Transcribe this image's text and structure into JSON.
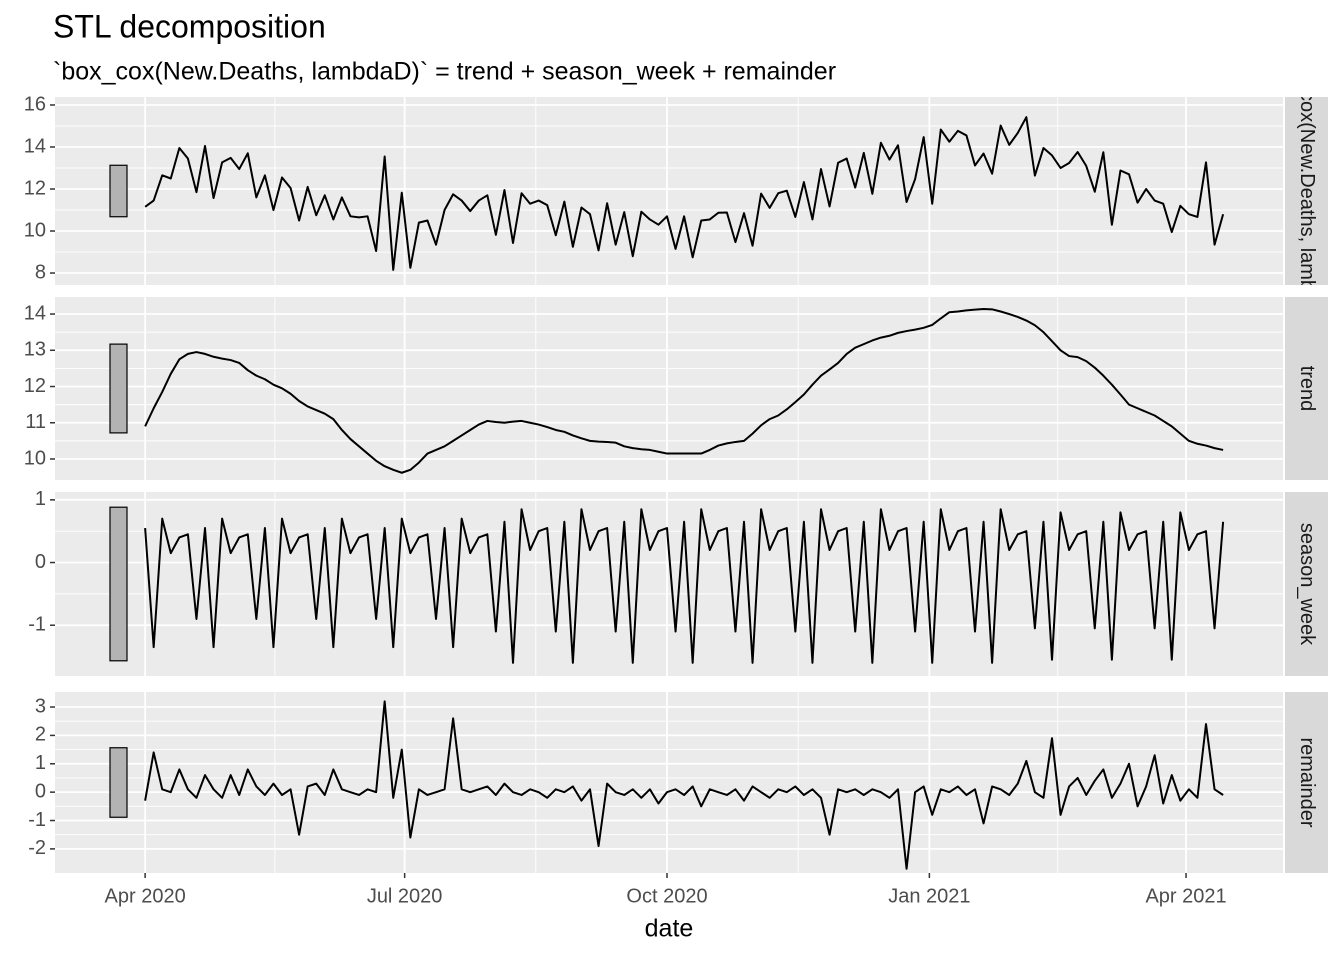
{
  "chart_data": {
    "type": "line",
    "title": "STL decomposition",
    "subtitle": "`box_cox(New.Deaths, lambdaD)` = trend + season_week + remainder",
    "x_label": "date",
    "color": "#000000",
    "grid": true,
    "x": [
      0,
      3,
      6,
      9,
      12,
      15,
      18,
      21,
      24,
      27,
      30,
      33,
      36,
      39,
      42,
      45,
      48,
      51,
      54,
      57,
      60,
      63,
      66,
      69,
      72,
      75,
      78,
      81,
      84,
      87,
      90,
      93,
      96,
      99,
      102,
      105,
      108,
      111,
      114,
      117,
      120,
      123,
      126,
      129,
      132,
      135,
      138,
      141,
      144,
      147,
      150,
      153,
      156,
      159,
      162,
      165,
      168,
      171,
      174,
      177,
      180,
      183,
      186,
      189,
      192,
      195,
      198,
      201,
      204,
      207,
      210,
      213,
      216,
      219,
      222,
      225,
      228,
      231,
      234,
      237,
      240,
      243,
      246,
      249,
      252,
      255,
      258,
      261,
      264,
      267,
      270,
      273,
      276,
      279,
      282,
      285,
      288,
      291,
      294,
      297,
      300,
      303,
      306,
      309,
      312,
      315,
      318,
      321,
      324,
      327,
      330,
      333,
      336,
      339,
      342,
      345,
      348,
      351,
      354,
      357,
      360,
      363,
      366,
      369,
      372,
      375,
      378
    ],
    "xlim": [
      -31.6,
      399
    ],
    "xticks": [
      {
        "value": 0,
        "label": "Apr 2020"
      },
      {
        "value": 91,
        "label": "Jul 2020"
      },
      {
        "value": 183,
        "label": "Oct 2020"
      },
      {
        "value": 275,
        "label": "Jan 2021"
      },
      {
        "value": 365,
        "label": "Apr 2021"
      }
    ],
    "panels": [
      {
        "label": "box_cox(New.Deaths, lambdaD)",
        "ylim": [
          7.43,
          16.38
        ],
        "yticks": [
          8,
          10,
          12,
          14,
          16
        ],
        "values": [
          11.15,
          11.45,
          12.65,
          12.5,
          13.95,
          13.45,
          11.85,
          14.05,
          11.57,
          13.27,
          13.48,
          12.95,
          13.7,
          11.6,
          12.65,
          11.0,
          12.55,
          12.05,
          10.5,
          12.1,
          10.75,
          11.7,
          10.55,
          11.6,
          10.7,
          10.65,
          10.7,
          9.05,
          13.55,
          8.15,
          11.82,
          8.25,
          10.4,
          10.5,
          9.35,
          11.0,
          11.75,
          11.45,
          10.95,
          11.45,
          11.7,
          9.82,
          11.95,
          9.43,
          11.8,
          11.3,
          11.45,
          11.23,
          9.8,
          11.4,
          9.25,
          11.12,
          10.8,
          9.08,
          11.32,
          9.35,
          10.9,
          8.8,
          10.92,
          10.55,
          10.3,
          10.7,
          9.15,
          10.7,
          8.75,
          10.5,
          10.55,
          10.87,
          10.88,
          9.47,
          10.85,
          9.3,
          11.78,
          11.1,
          11.8,
          11.92,
          10.67,
          12.33,
          10.55,
          12.95,
          11.17,
          13.25,
          13.45,
          12.07,
          13.72,
          11.77,
          14.2,
          13.4,
          14.08,
          11.38,
          12.47,
          14.47,
          11.3,
          14.83,
          14.25,
          14.77,
          14.55,
          13.12,
          13.69,
          12.73,
          15.02,
          14.1,
          14.67,
          15.42,
          12.64,
          13.95,
          13.6,
          13.0,
          13.24,
          13.76,
          13.1,
          11.87,
          13.75,
          10.3,
          12.88,
          12.7,
          11.35,
          12.0,
          11.45,
          11.3,
          9.95,
          11.2,
          10.8,
          10.67,
          13.27,
          9.35,
          10.8
        ]
      },
      {
        "label": "trend",
        "ylim": [
          9.42,
          14.47
        ],
        "yticks": [
          10,
          11,
          12,
          13,
          14
        ],
        "values": [
          10.9,
          11.4,
          11.85,
          12.35,
          12.75,
          12.9,
          12.95,
          12.9,
          12.82,
          12.77,
          12.73,
          12.65,
          12.45,
          12.3,
          12.2,
          12.05,
          11.95,
          11.8,
          11.6,
          11.45,
          11.35,
          11.25,
          11.1,
          10.8,
          10.55,
          10.35,
          10.15,
          9.95,
          9.8,
          9.7,
          9.62,
          9.7,
          9.9,
          10.15,
          10.25,
          10.35,
          10.5,
          10.65,
          10.8,
          10.95,
          11.05,
          11.02,
          11.0,
          11.03,
          11.05,
          11.0,
          10.95,
          10.88,
          10.8,
          10.75,
          10.65,
          10.57,
          10.5,
          10.48,
          10.47,
          10.45,
          10.35,
          10.3,
          10.27,
          10.25,
          10.2,
          10.15,
          10.15,
          10.15,
          10.15,
          10.15,
          10.25,
          10.37,
          10.43,
          10.47,
          10.5,
          10.7,
          10.93,
          11.1,
          11.2,
          11.37,
          11.57,
          11.78,
          12.05,
          12.3,
          12.47,
          12.65,
          12.9,
          13.07,
          13.17,
          13.27,
          13.35,
          13.4,
          13.48,
          13.53,
          13.57,
          13.62,
          13.7,
          13.88,
          14.05,
          14.07,
          14.1,
          14.12,
          14.14,
          14.13,
          14.07,
          14.0,
          13.92,
          13.82,
          13.69,
          13.5,
          13.25,
          13.0,
          12.84,
          12.81,
          12.7,
          12.52,
          12.3,
          12.05,
          11.78,
          11.5,
          11.4,
          11.3,
          11.2,
          11.05,
          10.9,
          10.7,
          10.5,
          10.42,
          10.37,
          10.3,
          10.25
        ]
      },
      {
        "label": "season_week",
        "ylim": [
          -1.81,
          1.125
        ],
        "yticks": [
          -1,
          0,
          1
        ],
        "values": [
          0.55,
          -1.35,
          0.7,
          0.15,
          0.4,
          0.45,
          -0.9,
          0.55,
          -1.35,
          0.7,
          0.15,
          0.4,
          0.45,
          -0.9,
          0.55,
          -1.35,
          0.7,
          0.15,
          0.4,
          0.45,
          -0.9,
          0.55,
          -1.35,
          0.7,
          0.15,
          0.4,
          0.45,
          -0.9,
          0.55,
          -1.35,
          0.7,
          0.15,
          0.4,
          0.45,
          -0.9,
          0.55,
          -1.35,
          0.7,
          0.15,
          0.4,
          0.45,
          -1.1,
          0.65,
          -1.6,
          0.85,
          0.2,
          0.5,
          0.55,
          -1.1,
          0.65,
          -1.6,
          0.85,
          0.2,
          0.5,
          0.55,
          -1.1,
          0.65,
          -1.6,
          0.85,
          0.2,
          0.5,
          0.55,
          -1.1,
          0.65,
          -1.6,
          0.85,
          0.2,
          0.5,
          0.55,
          -1.1,
          0.65,
          -1.6,
          0.85,
          0.2,
          0.5,
          0.55,
          -1.1,
          0.65,
          -1.6,
          0.85,
          0.2,
          0.5,
          0.55,
          -1.1,
          0.65,
          -1.6,
          0.85,
          0.2,
          0.5,
          0.55,
          -1.1,
          0.65,
          -1.6,
          0.85,
          0.2,
          0.5,
          0.55,
          -1.1,
          0.65,
          -1.6,
          0.85,
          0.2,
          0.45,
          0.5,
          -1.05,
          0.65,
          -1.55,
          0.8,
          0.2,
          0.45,
          0.5,
          -1.05,
          0.65,
          -1.55,
          0.8,
          0.2,
          0.45,
          0.5,
          -1.05,
          0.65,
          -1.55,
          0.8,
          0.2,
          0.45,
          0.5,
          -1.05,
          0.65
        ]
      },
      {
        "label": "remainder",
        "ylim": [
          -2.85,
          3.53
        ],
        "yticks": [
          -2,
          -1,
          0,
          1,
          2,
          3
        ],
        "values": [
          -0.3,
          1.4,
          0.1,
          0.0,
          0.8,
          0.1,
          -0.2,
          0.6,
          0.1,
          -0.2,
          0.6,
          -0.1,
          0.8,
          0.2,
          -0.1,
          0.3,
          -0.1,
          0.1,
          -1.5,
          0.2,
          0.3,
          -0.1,
          0.8,
          0.1,
          0.0,
          -0.1,
          0.1,
          0.0,
          3.2,
          -0.2,
          1.5,
          -1.6,
          0.1,
          -0.1,
          0.0,
          0.1,
          2.6,
          0.1,
          0.0,
          0.1,
          0.2,
          -0.1,
          0.3,
          0.0,
          -0.1,
          0.1,
          0.0,
          -0.2,
          0.1,
          0.0,
          0.2,
          -0.3,
          0.1,
          -1.9,
          0.3,
          0.0,
          -0.1,
          0.1,
          -0.2,
          0.1,
          -0.4,
          0.0,
          0.1,
          -0.1,
          0.2,
          -0.5,
          0.1,
          0.0,
          -0.1,
          0.1,
          -0.3,
          0.2,
          0.0,
          -0.2,
          0.1,
          0.0,
          0.2,
          -0.1,
          0.1,
          -0.2,
          -1.5,
          0.1,
          0.0,
          0.1,
          -0.1,
          0.1,
          0.0,
          -0.2,
          0.1,
          -2.7,
          0.0,
          0.2,
          -0.8,
          0.1,
          0.0,
          0.2,
          -0.1,
          0.1,
          -1.1,
          0.2,
          0.1,
          -0.1,
          0.3,
          1.1,
          0.0,
          -0.2,
          1.9,
          -0.8,
          0.2,
          0.5,
          -0.1,
          0.4,
          0.8,
          -0.2,
          0.3,
          1.0,
          -0.5,
          0.2,
          1.3,
          -0.4,
          0.6,
          -0.3,
          0.1,
          -0.2,
          2.4,
          0.1,
          -0.1
        ]
      }
    ]
  }
}
